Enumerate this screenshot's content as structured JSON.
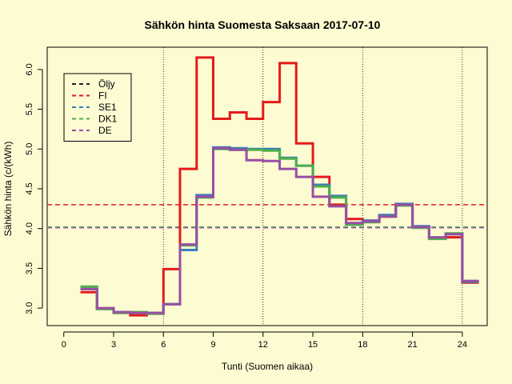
{
  "chart_data": {
    "type": "line",
    "title": "Sähkön hinta Suomesta Saksaan 2017-07-10",
    "xlabel": "Tunti (Suomen aikaa)",
    "ylabel": "Sähkön hinta (c/(kWh)",
    "xlim": [
      -1,
      25.5
    ],
    "ylim": [
      2.78,
      6.28
    ],
    "x_ticks": [
      0,
      3,
      6,
      9,
      12,
      15,
      18,
      21,
      24
    ],
    "y_ticks": [
      3.0,
      3.5,
      4.0,
      4.5,
      5.0,
      5.5,
      6.0
    ],
    "y_tick_labels": [
      "3.0",
      "3.5",
      "4.0",
      "4.5",
      "5.0",
      "5.5",
      "6.0"
    ],
    "vlines": [
      6,
      12,
      18,
      24
    ],
    "hours": [
      1,
      2,
      3,
      4,
      5,
      6,
      7,
      8,
      9,
      10,
      11,
      12,
      13,
      14,
      15,
      16,
      17,
      18,
      19,
      20,
      21,
      22,
      23,
      24,
      25
    ],
    "series": [
      {
        "name": "Öljy",
        "color": "#222222",
        "step_values": [],
        "average": null
      },
      {
        "name": "FI",
        "color": "#e41a1c",
        "average": 4.3,
        "step_values": [
          3.2,
          2.99,
          2.94,
          2.91,
          2.93,
          3.49,
          4.75,
          6.15,
          5.38,
          5.46,
          5.38,
          5.59,
          6.08,
          5.07,
          4.65,
          4.3,
          4.12,
          4.1,
          4.16,
          4.3,
          4.02,
          3.88,
          3.89,
          3.32
        ]
      },
      {
        "name": "SE1",
        "color": "#377eb8",
        "average": 4.02,
        "step_values": [
          3.24,
          2.99,
          2.95,
          2.94,
          2.94,
          3.05,
          3.73,
          4.42,
          5.02,
          5.01,
          5.0,
          5.0,
          4.89,
          4.79,
          4.55,
          4.41,
          4.05,
          4.1,
          4.17,
          4.31,
          4.03,
          3.88,
          3.93,
          3.33
        ]
      },
      {
        "name": "DK1",
        "color": "#4daf4a",
        "average": 4.02,
        "step_values": [
          3.27,
          2.99,
          2.94,
          2.95,
          2.93,
          3.05,
          3.79,
          4.39,
          5.0,
          4.99,
          4.99,
          4.98,
          4.88,
          4.79,
          4.53,
          4.39,
          4.05,
          4.08,
          4.15,
          4.29,
          4.01,
          3.87,
          3.94,
          3.34
        ]
      },
      {
        "name": "DE",
        "color": "#984ea3",
        "average": 4.01,
        "step_values": [
          3.24,
          3.0,
          2.95,
          2.94,
          2.94,
          3.05,
          3.8,
          4.4,
          5.01,
          4.99,
          4.86,
          4.85,
          4.75,
          4.65,
          4.4,
          4.28,
          4.07,
          4.09,
          4.15,
          4.3,
          4.02,
          3.89,
          3.93,
          3.34
        ]
      }
    ],
    "legend_position": "top-left",
    "grid": false
  }
}
